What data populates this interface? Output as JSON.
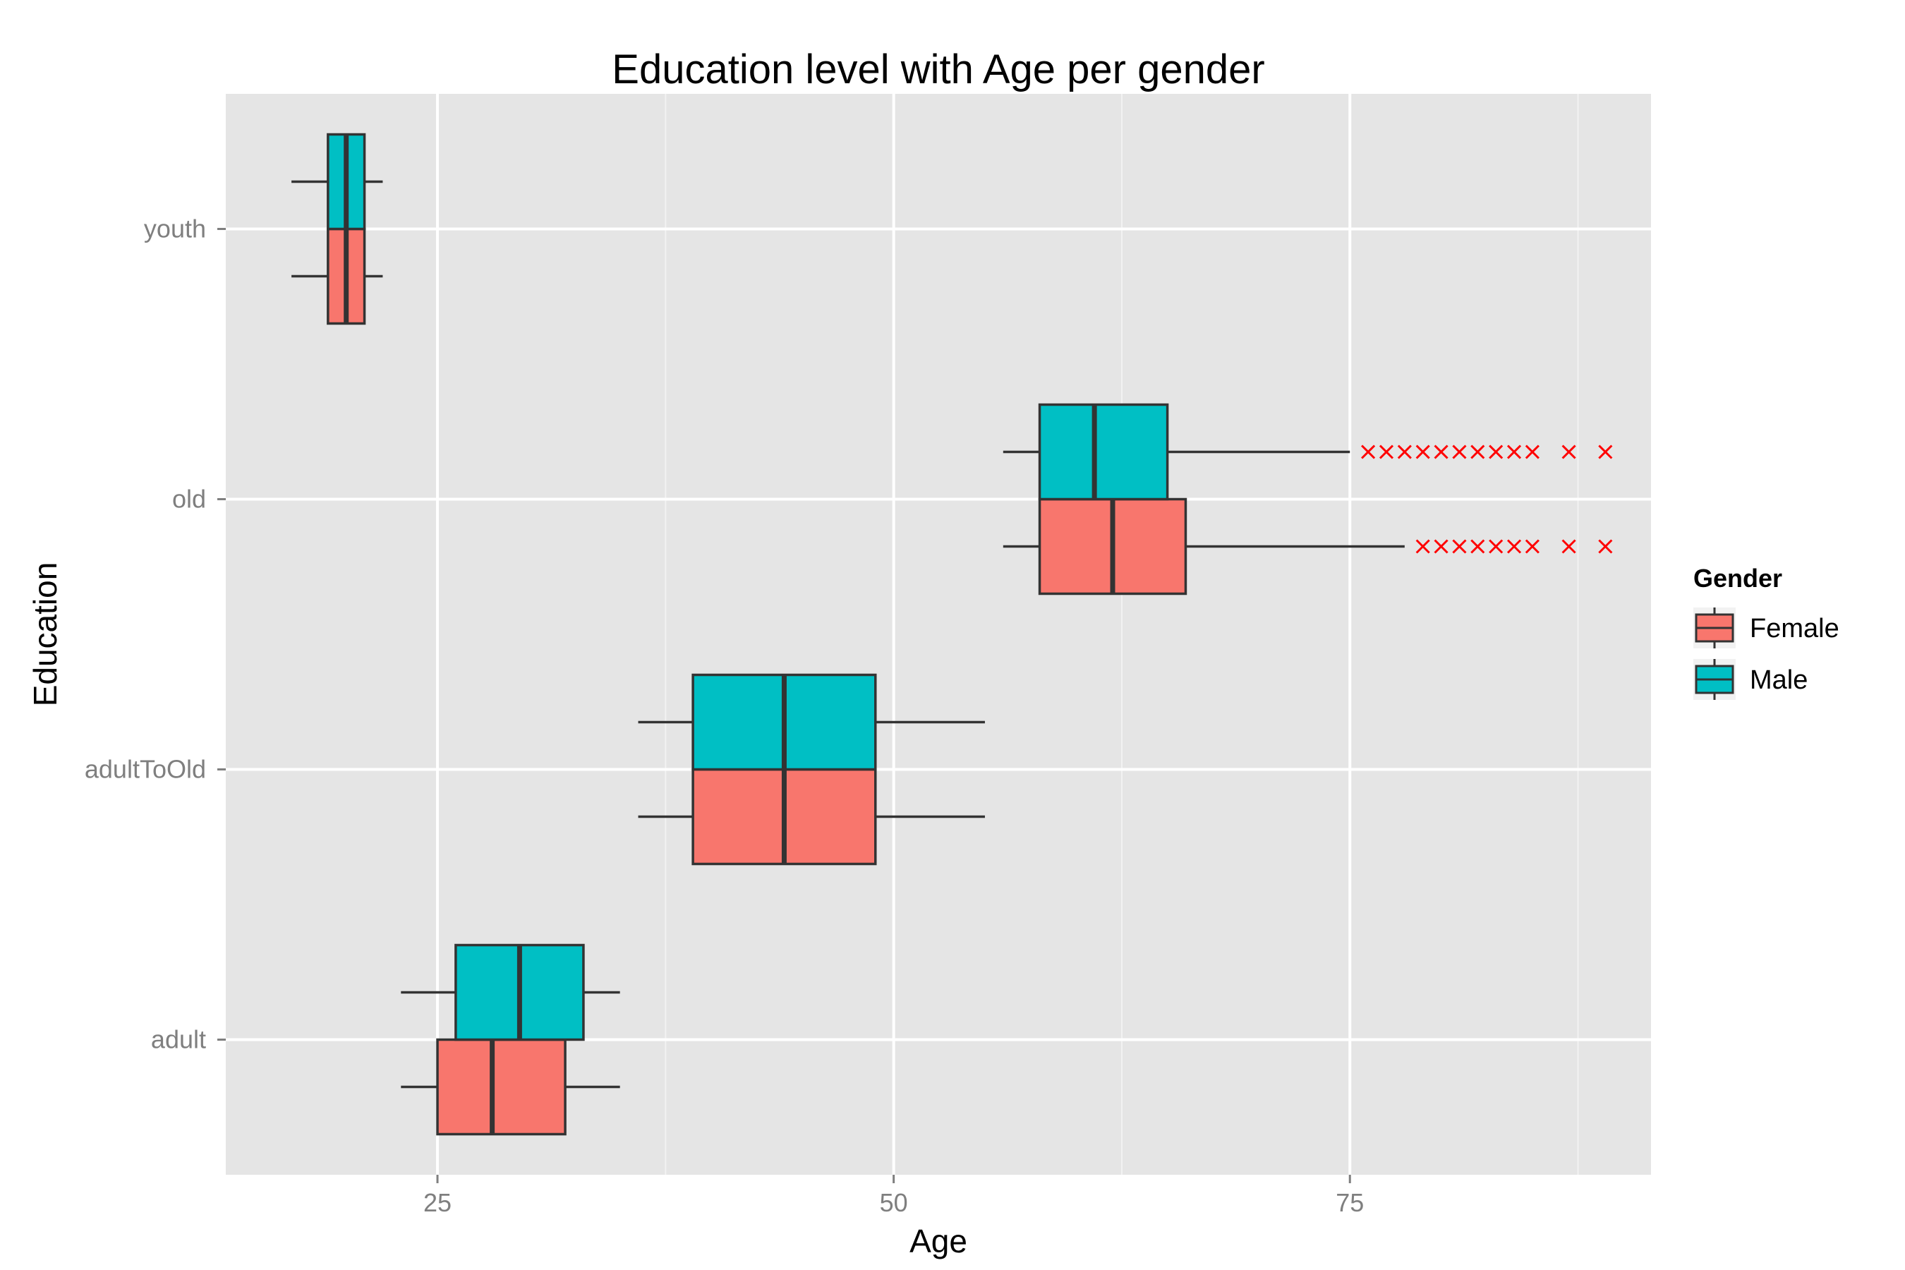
{
  "chart_data": {
    "type": "boxplot",
    "orientation": "horizontal",
    "title": "Education level with Age per gender",
    "xlabel": "Age",
    "ylabel": "Education",
    "xlim": [
      13.4,
      91.5
    ],
    "x_ticks": [
      25,
      50,
      75
    ],
    "x_tick_labels": [
      "25",
      "50",
      "75"
    ],
    "categories": [
      "adult",
      "adultToOld",
      "old",
      "youth"
    ],
    "grid": true,
    "legend": {
      "title": "Gender",
      "position": "right",
      "entries": [
        "Female",
        "Male"
      ]
    },
    "colors": {
      "Female": "#F8766D",
      "Male": "#00BFC4",
      "outlier": "#FF0000",
      "panel": "#E5E5E5",
      "grid": "#FFFFFF"
    },
    "series": [
      {
        "name": "Female",
        "boxes": [
          {
            "category": "adult",
            "whisker_low": 23,
            "q1": 25,
            "median": 28,
            "q3": 32,
            "whisker_high": 35,
            "outliers": []
          },
          {
            "category": "adultToOld",
            "whisker_low": 36,
            "q1": 39,
            "median": 44,
            "q3": 49,
            "whisker_high": 55,
            "outliers": []
          },
          {
            "category": "old",
            "whisker_low": 56,
            "q1": 58,
            "median": 62,
            "q3": 66,
            "whisker_high": 78,
            "outliers": [
              79,
              80,
              81,
              82,
              83,
              84,
              85,
              87,
              89
            ]
          },
          {
            "category": "youth",
            "whisker_low": 17,
            "q1": 19,
            "median": 20,
            "q3": 21,
            "whisker_high": 22,
            "outliers": []
          }
        ]
      },
      {
        "name": "Male",
        "boxes": [
          {
            "category": "adult",
            "whisker_low": 23,
            "q1": 26,
            "median": 29.5,
            "q3": 33,
            "whisker_high": 35,
            "outliers": []
          },
          {
            "category": "adultToOld",
            "whisker_low": 36,
            "q1": 39,
            "median": 44,
            "q3": 49,
            "whisker_high": 55,
            "outliers": []
          },
          {
            "category": "old",
            "whisker_low": 56,
            "q1": 58,
            "median": 61,
            "q3": 65,
            "whisker_high": 75,
            "outliers": [
              76,
              77,
              78,
              79,
              80,
              81,
              82,
              83,
              84,
              85,
              87,
              89
            ]
          },
          {
            "category": "youth",
            "whisker_low": 17,
            "q1": 19,
            "median": 20,
            "q3": 21,
            "whisker_high": 22,
            "outliers": []
          }
        ]
      }
    ]
  }
}
